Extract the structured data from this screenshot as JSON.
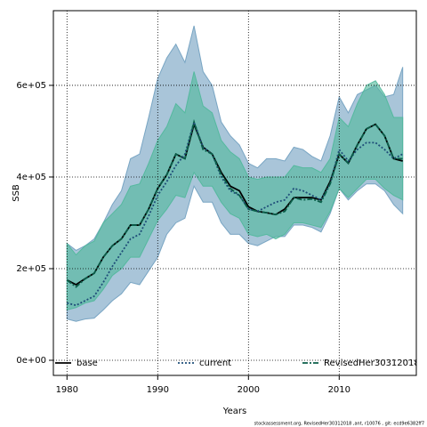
{
  "chart_data": {
    "type": "line",
    "xlabel": "Years",
    "ylabel": "SSB",
    "footnote": "stockassessment.org, RevisedHer30312018 ,ant, r10076 , git: ecd9e6382ff7",
    "x": [
      1980,
      1981,
      1982,
      1983,
      1984,
      1985,
      1986,
      1987,
      1988,
      1989,
      1990,
      1991,
      1992,
      1993,
      1994,
      1995,
      1996,
      1997,
      1998,
      1999,
      2000,
      2001,
      2002,
      2003,
      2004,
      2005,
      2006,
      2007,
      2008,
      2009,
      2010,
      2011,
      2012,
      2013,
      2014,
      2015,
      2016,
      2017
    ],
    "xlim": [
      1978.5,
      2018.5
    ],
    "xticks": [
      1980,
      1990,
      2000,
      2010
    ],
    "ylim": [
      -33000,
      763000
    ],
    "yticks": [
      {
        "value": 0,
        "label": "0e+00"
      },
      {
        "value": 200000,
        "label": "2e+05"
      },
      {
        "value": 400000,
        "label": "4e+05"
      },
      {
        "value": 600000,
        "label": "6e+05"
      }
    ],
    "grid": true,
    "legend": "bottom",
    "series": [
      {
        "name": "base",
        "color": "#000000",
        "band_color": "#6f9fbf",
        "linestyle": "solid",
        "values": [
          175000,
          165000,
          178000,
          190000,
          225000,
          250000,
          265000,
          295000,
          295000,
          330000,
          375000,
          405000,
          450000,
          440000,
          515000,
          465000,
          450000,
          410000,
          380000,
          370000,
          335000,
          325000,
          322000,
          318000,
          330000,
          355000,
          355000,
          355000,
          350000,
          390000,
          450000,
          430000,
          470000,
          505000,
          515000,
          490000,
          440000,
          435000
        ],
        "upper": [
          255000,
          240000,
          250000,
          265000,
          300000,
          340000,
          370000,
          440000,
          450000,
          530000,
          615000,
          660000,
          690000,
          650000,
          730000,
          630000,
          600000,
          520000,
          490000,
          470000,
          430000,
          420000,
          440000,
          440000,
          435000,
          465000,
          460000,
          445000,
          435000,
          490000,
          575000,
          540000,
          580000,
          590000,
          600000,
          575000,
          580000,
          640000
        ],
        "lower": [
          90000,
          85000,
          90000,
          92000,
          110000,
          130000,
          145000,
          170000,
          165000,
          195000,
          225000,
          275000,
          300000,
          310000,
          380000,
          345000,
          345000,
          300000,
          275000,
          275000,
          255000,
          250000,
          260000,
          270000,
          270000,
          295000,
          295000,
          290000,
          280000,
          320000,
          375000,
          350000,
          370000,
          385000,
          385000,
          370000,
          340000,
          320000
        ]
      },
      {
        "name": "current",
        "color": "#1f4e79",
        "linestyle": "dotted",
        "values": [
          125000,
          120000,
          130000,
          140000,
          170000,
          205000,
          235000,
          265000,
          275000,
          315000,
          360000,
          390000,
          425000,
          450000,
          520000,
          465000,
          450000,
          400000,
          370000,
          360000,
          330000,
          325000,
          335000,
          345000,
          350000,
          375000,
          370000,
          360000,
          350000,
          385000,
          460000,
          435000,
          460000,
          475000,
          475000,
          460000,
          440000,
          450000
        ]
      },
      {
        "name": "RevisedHer30312018",
        "color": "#0b5e4a",
        "band_color": "#4fb89a",
        "linestyle": "dashdot",
        "values": [
          175000,
          160000,
          178000,
          190000,
          225000,
          250000,
          265000,
          295000,
          295000,
          330000,
          375000,
          405000,
          450000,
          440000,
          520000,
          460000,
          450000,
          405000,
          375000,
          360000,
          330000,
          325000,
          322000,
          318000,
          325000,
          355000,
          350000,
          352000,
          345000,
          385000,
          450000,
          430000,
          470000,
          505000,
          515000,
          490000,
          440000,
          440000
        ],
        "upper": [
          255000,
          230000,
          250000,
          260000,
          300000,
          320000,
          340000,
          380000,
          385000,
          430000,
          480000,
          510000,
          560000,
          540000,
          630000,
          555000,
          540000,
          480000,
          455000,
          440000,
          400000,
          395000,
          400000,
          400000,
          400000,
          425000,
          420000,
          420000,
          410000,
          440000,
          530000,
          510000,
          560000,
          600000,
          610000,
          580000,
          530000,
          530000
        ],
        "lower": [
          110000,
          115000,
          125000,
          130000,
          155000,
          185000,
          200000,
          225000,
          225000,
          265000,
          305000,
          330000,
          360000,
          355000,
          410000,
          380000,
          380000,
          345000,
          320000,
          310000,
          275000,
          270000,
          275000,
          265000,
          275000,
          300000,
          300000,
          295000,
          290000,
          325000,
          375000,
          355000,
          375000,
          395000,
          395000,
          375000,
          360000,
          350000
        ]
      }
    ]
  }
}
